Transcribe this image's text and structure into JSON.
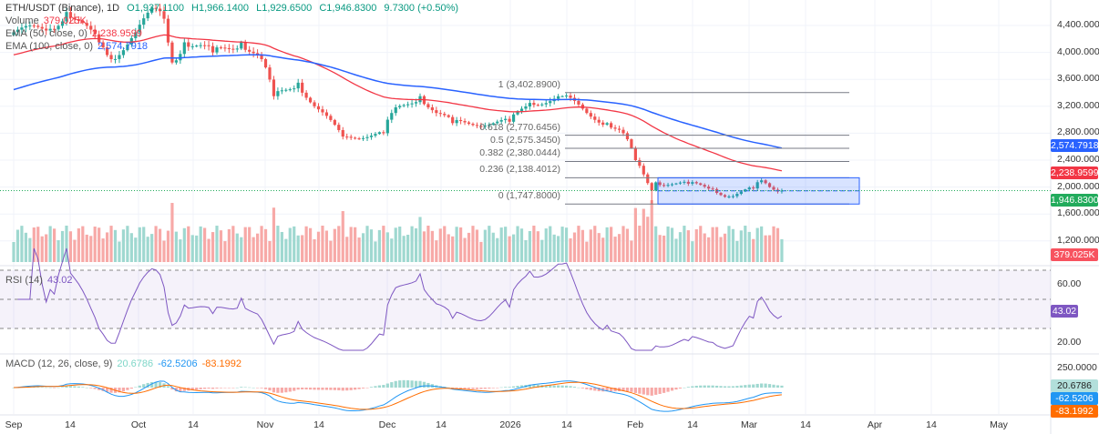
{
  "header": {
    "symbol": "ETH/USDT (Binance), 1D",
    "open": "O1,937.1100",
    "high": "H1,966.1400",
    "low": "L1,929.6500",
    "close": "C1,946.8300",
    "change": "9.7300 (+0.50%)"
  },
  "legend": {
    "volume_label": "Volume",
    "volume_value": "379.025K",
    "ema50_label": "EMA (50, close, 0)",
    "ema50_value": "2,238.9599",
    "ema100_label": "EMA (100, close, 0)",
    "ema100_value": "2,574.7918",
    "rsi_label": "RSI (14)",
    "rsi_value": "43.02",
    "macd_label": "MACD (12, 26, close, 9)",
    "macd_hist": "20.6786",
    "macd_line": "-62.5206",
    "macd_signal": "-83.1992"
  },
  "price_axis": [
    "4,400.0000",
    "4,000.0000",
    "3,600.0000",
    "3,200.0000",
    "2,800.0000",
    "2,400.0000",
    "2,000.0000",
    "1,600.0000",
    "1,200.0000"
  ],
  "rsi_axis": [
    "60.00",
    "20.00"
  ],
  "macd_axis": [
    "250.0000"
  ],
  "tags": {
    "ema100": "2,574.7918",
    "ema50": "2,238.9599",
    "price": "1,946.8300",
    "volume": "379.025K",
    "rsi": "43.02",
    "macd_hist": "20.6786",
    "macd_line": "-62.5206",
    "macd_signal": "-83.1992"
  },
  "colors": {
    "up": "#26a69a",
    "down": "#ef5350",
    "ema50": "#f23645",
    "ema100": "#2962ff",
    "rsi": "#7e57c2",
    "macd": "#2196f3",
    "signal": "#ff6d00",
    "price_tag": "#22ab5c"
  },
  "fib": [
    {
      "label": "1 (3,402.8900)",
      "price": 3402.89
    },
    {
      "label": "0.618 (2,770.6456)",
      "price": 2770.6456
    },
    {
      "label": "0.5 (2,575.3450)",
      "price": 2575.345
    },
    {
      "label": "0.382 (2,380.0444)",
      "price": 2380.0444
    },
    {
      "label": "0.236 (2,138.4012)",
      "price": 2138.4012
    },
    {
      "label": "0 (1,747.8000)",
      "price": 1747.8
    }
  ],
  "x_axis": [
    "Sep",
    "14",
    "Oct",
    "14",
    "Nov",
    "14",
    "Dec",
    "14",
    "2026",
    "14",
    "Feb",
    "14",
    "Mar",
    "14",
    "Apr",
    "14",
    "May"
  ],
  "chart_data": {
    "type": "candlestick",
    "title": "ETH/USDT (Binance), 1D",
    "x_unit": "days since Sep 1",
    "ylim": [
      1000,
      4800
    ],
    "close_keypoints": [
      [
        0,
        4300
      ],
      [
        9,
        4350
      ],
      [
        13,
        4600
      ],
      [
        21,
        4150
      ],
      [
        24,
        3900
      ],
      [
        30,
        4300
      ],
      [
        35,
        4650
      ],
      [
        37,
        4500
      ],
      [
        39,
        3850
      ],
      [
        42,
        4150
      ],
      [
        49,
        4000
      ],
      [
        56,
        4150
      ],
      [
        61,
        3900
      ],
      [
        64,
        3350
      ],
      [
        70,
        3550
      ],
      [
        74,
        3200
      ],
      [
        81,
        2750
      ],
      [
        91,
        2800
      ],
      [
        93,
        3100
      ],
      [
        100,
        3350
      ],
      [
        104,
        3100
      ],
      [
        108,
        2950
      ],
      [
        122,
        2970
      ],
      [
        127,
        3250
      ],
      [
        135,
        3350
      ],
      [
        141,
        3100
      ],
      [
        146,
        2950
      ],
      [
        150,
        2800
      ],
      [
        153,
        2400
      ],
      [
        157,
        1950
      ],
      [
        158,
        2070
      ],
      [
        166,
        2050
      ],
      [
        172,
        1970
      ],
      [
        176,
        1860
      ],
      [
        182,
        1980
      ],
      [
        184,
        2100
      ],
      [
        186,
        2000
      ],
      [
        189,
        1946.83
      ]
    ],
    "ema50_start": 3950,
    "ema100_start": 3430
  }
}
